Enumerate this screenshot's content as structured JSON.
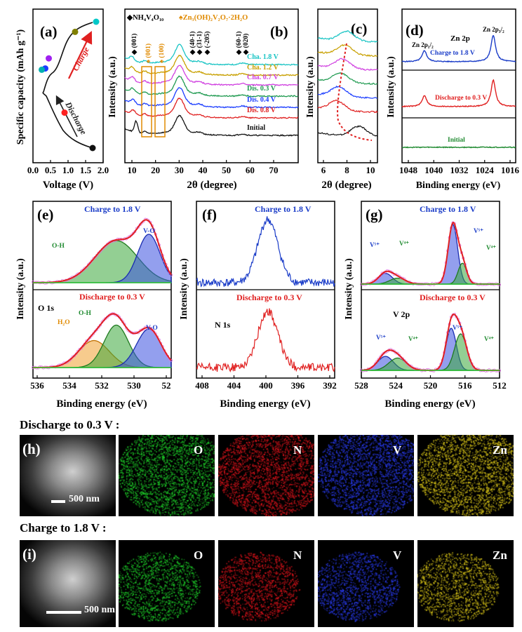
{
  "panels": {
    "a": {
      "letter": "(a)",
      "ylabel": "Specific capacity (mAh g⁻¹)",
      "xlabel": "Voltage (V)",
      "xticks": [
        "0.0",
        "0.5",
        "1.0",
        "1.5",
        "2.0"
      ],
      "charge": "Charge",
      "discharge": "Discharge",
      "dot_colors": [
        "#111111",
        "#ff2222",
        "#1a3cff",
        "#00b0b0",
        "#a020f0",
        "#808000",
        "#00c8c8"
      ]
    },
    "b": {
      "letter": "(b)",
      "ylabel": "Intensity (a.u.)",
      "xlabel": "2θ (degree)",
      "xticks": [
        "10",
        "20",
        "30",
        "40",
        "50",
        "60",
        "70"
      ],
      "legend1": "◆NH₄V₄O₁₀",
      "legend2": "♠Zn₃(OH)₂V₂O₇·2H₂O",
      "peaks_black": [
        "(001)",
        "(40-1)",
        "(31-1)",
        "(-205)",
        "(60-1)",
        "(020)"
      ],
      "peaks_orange": [
        "(001)",
        "(100)"
      ]
    },
    "c": {
      "letter": "(c)",
      "ylabel": "Intensity (a.u.)",
      "xlabel": "2θ (degree)",
      "xticks": [
        "6",
        "8",
        "10"
      ]
    },
    "d": {
      "letter": "(d)",
      "ylabel": "Intensity (a.u.)",
      "xlabel": "Binding energy (eV)",
      "xticks": [
        "1048",
        "1040",
        "1032",
        "1024",
        "1016"
      ],
      "title": "Zn 2p",
      "peak1": "Zn 2p₁/₂",
      "peak2": "Zn 2p₃/₂",
      "labels": [
        "Charge to 1.8 V",
        "Discharge to 0.3 V",
        "Initial"
      ]
    },
    "e": {
      "letter": "(e)",
      "ylabel": "Intensity (a.u.)",
      "xlabel": "Binding energy (eV)",
      "xticks": [
        "536",
        "534",
        "532",
        "530",
        "52"
      ],
      "top": "Charge to 1.8 V",
      "bottom": "Discharge to 0.3 V",
      "core": "O 1s",
      "oh": "O-H",
      "vo": "V-O",
      "h2o": "H₂O"
    },
    "f": {
      "letter": "(f)",
      "ylabel": "Intensity (a.u.)",
      "xlabel": "Binding energy (eV)",
      "xticks": [
        "408",
        "404",
        "400",
        "396",
        "392"
      ],
      "top": "Charge to 1.8 V",
      "bottom": "Discharge to 0.3 V",
      "core": "N 1s"
    },
    "g": {
      "letter": "(g)",
      "ylabel": "Intensity (a.u.)",
      "xlabel": "Binding energy (eV)",
      "xticks": [
        "528",
        "524",
        "520",
        "516",
        "512"
      ],
      "top": "Charge to 1.8 V",
      "bottom": "Discharge to 0.3 V",
      "core": "V 2p",
      "v5": "V⁵⁺",
      "v4": "V⁴⁺"
    }
  },
  "maps": {
    "h": {
      "heading": "Discharge to 0.3 V :",
      "letter": "(h)",
      "scale": "500 nm"
    },
    "i": {
      "heading": "Charge to 1.8 V :",
      "letter": "(i)",
      "scale": "500 nm"
    },
    "elements": [
      {
        "label": "O",
        "color": "#1fd12a"
      },
      {
        "label": "N",
        "color": "#e0141c"
      },
      {
        "label": "V",
        "color": "#2a3cf0"
      },
      {
        "label": "Zn",
        "color": "#d8c418"
      }
    ]
  },
  "chart_data": [
    {
      "type": "line",
      "panel": "a",
      "xlabel": "Voltage (V)",
      "ylabel": "Specific capacity (mAh g⁻¹)",
      "xlim": [
        0,
        2.0
      ],
      "series": [
        {
          "x": [
            1.7,
            1.3,
            0.9,
            0.7,
            0.5,
            0.35,
            0.25,
            0.45,
            0.7,
            1.2,
            1.6,
            1.8
          ],
          "y": [
            0,
            0.08,
            0.28,
            0.45,
            0.6,
            0.63,
            0.62,
            0.71,
            0.79,
            0.92,
            1.0,
            1.0
          ]
        }
      ]
    },
    {
      "type": "line",
      "panel": "b",
      "xlabel": "2θ (degree)",
      "ylabel": "Intensity (a.u.)",
      "xlim": [
        5,
        70
      ],
      "series": [
        {
          "name": "Cha. 1.8 V",
          "color": "#19c4c4"
        },
        {
          "name": "Cha. 1.2 V",
          "color": "#c8a000"
        },
        {
          "name": "Cha. 0.7 V",
          "color": "#d040e0"
        },
        {
          "name": "Dis. 0.3 V",
          "color": "#1f9a50"
        },
        {
          "name": "Dis. 0.4 V",
          "color": "#1a3cff"
        },
        {
          "name": "Dis. 0.8 V",
          "color": "#e02020"
        },
        {
          "name": "Initial",
          "color": "#111111"
        }
      ]
    },
    {
      "type": "line",
      "panel": "c",
      "xlabel": "2θ (degree)",
      "ylabel": "Intensity (a.u.)",
      "xlim": [
        6,
        11
      ]
    },
    {
      "type": "line",
      "panel": "d",
      "xlabel": "Binding energy (eV)",
      "ylabel": "Intensity (a.u.)",
      "xlim": [
        1052,
        1014
      ],
      "series": [
        {
          "name": "Charge to 1.8 V",
          "color": "#1a3cc8",
          "peaks": [
            1044.5,
            1021.5
          ]
        },
        {
          "name": "Discharge to 0.3 V",
          "color": "#e02020",
          "peaks": [
            1044.5,
            1021.5
          ]
        },
        {
          "name": "Initial",
          "color": "#1f8a30",
          "peaks": []
        }
      ]
    },
    {
      "type": "line",
      "panel": "e",
      "xlabel": "Binding energy (eV)",
      "ylabel": "Intensity (a.u.)",
      "xlim": [
        536,
        529
      ]
    },
    {
      "type": "line",
      "panel": "f",
      "xlabel": "Binding energy (eV)",
      "ylabel": "Intensity (a.u.)",
      "xlim": [
        410,
        392
      ],
      "peak": 400.7
    },
    {
      "type": "line",
      "panel": "g",
      "xlabel": "Binding energy (eV)",
      "ylabel": "Intensity (a.u.)",
      "xlim": [
        528,
        512
      ],
      "peaks": {
        "V5+": [
          517.4,
          525.0
        ],
        "V4+": [
          516.3,
          523.6
        ]
      }
    }
  ]
}
